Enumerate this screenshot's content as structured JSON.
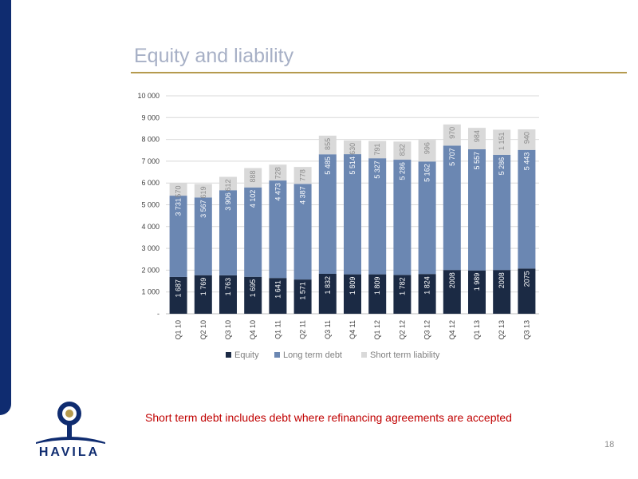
{
  "slide": {
    "title": "Equity and liability",
    "footnote": "Short term debt includes debt where refinancing agreements are accepted",
    "page_number": "18",
    "logo_text": "HAVILA"
  },
  "colors": {
    "equity": "#1b2a44",
    "long_term_debt": "#6b87b2",
    "short_term_liability": "#d9d9d9",
    "accent": "#b59a4e",
    "brand": "#0f2c70"
  },
  "chart_data": {
    "type": "bar",
    "stacked": true,
    "categories": [
      "Q1 10",
      "Q2 10",
      "Q3 10",
      "Q4 10",
      "Q1 11",
      "Q2 11",
      "Q3 11",
      "Q4 11",
      "Q1 12",
      "Q2 12",
      "Q3 12",
      "Q4 12",
      "Q1 13",
      "Q2 13",
      "Q3 13"
    ],
    "series": [
      {
        "name": "Equity",
        "values": [
          1687,
          1769,
          1763,
          1695,
          1641,
          1571,
          1832,
          1809,
          1809,
          1782,
          1824,
          2008,
          1989,
          2008,
          2075
        ],
        "labels": [
          "1 687",
          "1 769",
          "1 763",
          "1 695",
          "1 641",
          "1 571",
          "1 832",
          "1 809",
          "1 809",
          "1 782",
          "1 824",
          "2008",
          "1 989",
          "2008",
          "2075"
        ]
      },
      {
        "name": "Long term debt",
        "values": [
          3731,
          3567,
          3906,
          4102,
          4473,
          4387,
          5485,
          5514,
          5327,
          5286,
          5162,
          5707,
          5557,
          5286,
          5443
        ],
        "labels": [
          "3 731",
          "3 567",
          "3 906",
          "4 102",
          "4 473",
          "4 387",
          "5 485",
          "5 514",
          "5 327",
          "5 286",
          "5 162",
          "5 707",
          "5 557",
          "5 286",
          "5 443"
        ]
      },
      {
        "name": "Short term liability",
        "values": [
          570,
          619,
          612,
          888,
          728,
          778,
          855,
          630,
          791,
          832,
          996,
          970,
          984,
          1151,
          940
        ],
        "labels": [
          "570",
          "619",
          "612",
          "888",
          "728",
          "778",
          "855",
          "630",
          "791",
          "832",
          "996",
          "970",
          "984",
          "1 151",
          "940"
        ]
      }
    ],
    "yticks": [
      0,
      1000,
      2000,
      3000,
      4000,
      5000,
      6000,
      7000,
      8000,
      9000,
      10000
    ],
    "ytick_labels": [
      "-",
      "1 000",
      "2 000",
      "3 000",
      "4 000",
      "5 000",
      "6 000",
      "7 000",
      "8 000",
      "9 000",
      "10 000"
    ],
    "ylim": [
      0,
      10000
    ],
    "legend_position": "bottom",
    "grid": true
  }
}
